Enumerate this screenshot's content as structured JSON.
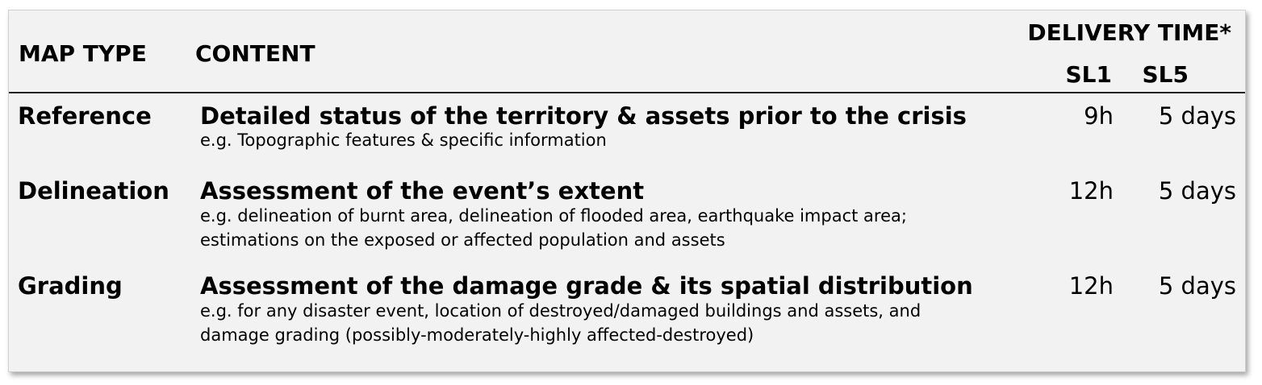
{
  "header": {
    "map_type": "MAP TYPE",
    "content": "CONTENT",
    "delivery_time": "DELIVERY TIME*",
    "sl1": "SL1",
    "sl5": "SL5"
  },
  "rows": [
    {
      "type": "Reference",
      "title": "Detailed status of the territory & assets prior to the crisis",
      "description": "e.g. Topographic features & specific information",
      "sl1": "9h",
      "sl5": "5 days"
    },
    {
      "type": "Delineation",
      "title": "Assessment of the event’s extent",
      "description": "e.g. delineation of burnt area, delineation of flooded area, earthquake impact area; estimations on the exposed or affected population and assets",
      "sl1": "12h",
      "sl5": "5 days"
    },
    {
      "type": "Grading",
      "title": "Assessment of the damage grade & its spatial distribution",
      "description": "e.g. for any disaster event, location of destroyed/damaged buildings and assets, and damage grading (possibly-moderately-highly affected-destroyed)",
      "sl1": "12h",
      "sl5": "5 days"
    }
  ]
}
